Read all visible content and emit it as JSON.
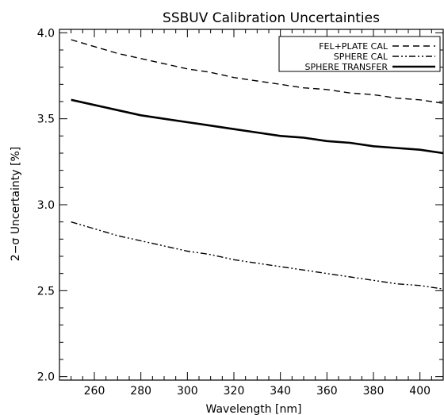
{
  "chart_data": {
    "type": "line",
    "title": "SSBUV Calibration Uncertainties",
    "xlabel": "Wavelength [nm]",
    "ylabel": "2−σ Uncertainty [%]",
    "xlim": [
      245,
      410
    ],
    "ylim": [
      1.98,
      4.02
    ],
    "x_ticks": [
      260,
      280,
      300,
      320,
      340,
      360,
      380,
      400
    ],
    "x_tick_labels": [
      "260",
      "280",
      "300",
      "320",
      "340",
      "360",
      "380",
      "400"
    ],
    "y_ticks": [
      2.0,
      2.5,
      3.0,
      3.5,
      4.0
    ],
    "y_tick_labels": [
      "2.0",
      "2.5",
      "3.0",
      "3.5",
      "4.0"
    ],
    "grid": false,
    "legend_position": "top-right",
    "series": [
      {
        "name": "FEL+PLATE CAL",
        "line_style": "dashed",
        "color": "#000000",
        "x": [
          250,
          260,
          270,
          280,
          290,
          300,
          310,
          320,
          330,
          340,
          350,
          360,
          370,
          380,
          390,
          400,
          410
        ],
        "y": [
          3.96,
          3.92,
          3.88,
          3.85,
          3.82,
          3.79,
          3.77,
          3.74,
          3.72,
          3.7,
          3.68,
          3.67,
          3.65,
          3.64,
          3.62,
          3.61,
          3.59
        ]
      },
      {
        "name": "SPHERE CAL",
        "line_style": "dash-dot-dot",
        "color": "#000000",
        "x": [
          250,
          260,
          270,
          280,
          290,
          300,
          310,
          320,
          330,
          340,
          350,
          360,
          370,
          380,
          390,
          400,
          410
        ],
        "y": [
          2.9,
          2.86,
          2.82,
          2.79,
          2.76,
          2.73,
          2.71,
          2.68,
          2.66,
          2.64,
          2.62,
          2.6,
          2.58,
          2.56,
          2.54,
          2.53,
          2.51
        ]
      },
      {
        "name": "SPHERE TRANSFER",
        "line_style": "solid",
        "color": "#000000",
        "x": [
          250,
          260,
          270,
          280,
          290,
          300,
          310,
          320,
          330,
          340,
          350,
          360,
          370,
          380,
          390,
          400,
          410
        ],
        "y": [
          3.61,
          3.58,
          3.55,
          3.52,
          3.5,
          3.48,
          3.46,
          3.44,
          3.42,
          3.4,
          3.39,
          3.37,
          3.36,
          3.34,
          3.33,
          3.32,
          3.3
        ]
      }
    ]
  }
}
